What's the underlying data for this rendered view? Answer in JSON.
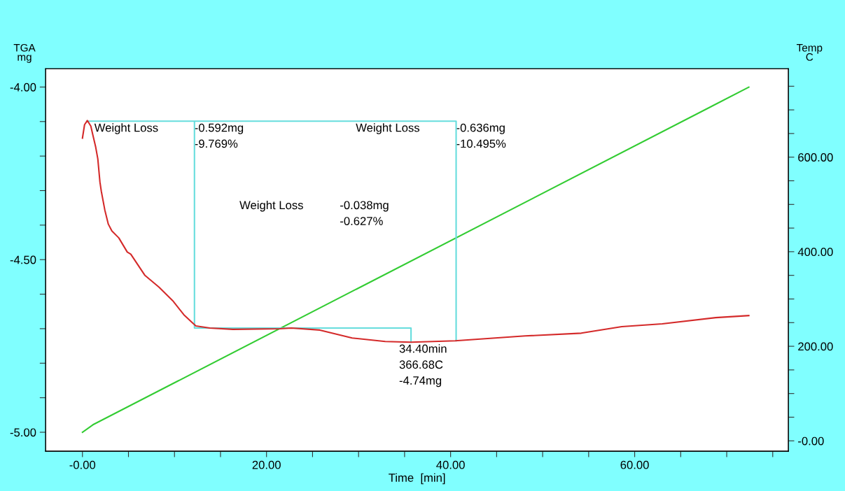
{
  "chart_data": {
    "type": "line",
    "xlabel": "Time  [min]",
    "ylabel": "TGA\nmg",
    "y2label": "Temp\nC",
    "xlim": [
      -4,
      76.7
    ],
    "ylim": [
      -5.055,
      -3.947
    ],
    "y2lim": [
      -22,
      787
    ],
    "xticks": [
      {
        "value": 0,
        "label": "-0.00"
      },
      {
        "value": 5,
        "label": null
      },
      {
        "value": 10,
        "label": null
      },
      {
        "value": 15,
        "label": null
      },
      {
        "value": 20,
        "label": "20.00"
      },
      {
        "value": 25,
        "label": null
      },
      {
        "value": 30,
        "label": null
      },
      {
        "value": 35,
        "label": null
      },
      {
        "value": 40,
        "label": "40.00"
      },
      {
        "value": 45,
        "label": null
      },
      {
        "value": 50,
        "label": null
      },
      {
        "value": 55,
        "label": null
      },
      {
        "value": 60,
        "label": "60.00"
      },
      {
        "value": 65,
        "label": null
      },
      {
        "value": 70,
        "label": null
      },
      {
        "value": 75,
        "label": null
      }
    ],
    "yticks": [
      {
        "value": -4.0,
        "label": "-4.00"
      },
      {
        "value": -4.1,
        "label": null
      },
      {
        "value": -4.2,
        "label": null
      },
      {
        "value": -4.3,
        "label": null
      },
      {
        "value": -4.4,
        "label": null
      },
      {
        "value": -4.5,
        "label": "-4.50"
      },
      {
        "value": -4.6,
        "label": null
      },
      {
        "value": -4.7,
        "label": null
      },
      {
        "value": -4.8,
        "label": null
      },
      {
        "value": -4.9,
        "label": null
      },
      {
        "value": -5.0,
        "label": "-5.00"
      }
    ],
    "y2ticks": [
      {
        "value": 0,
        "label": "-0.00"
      },
      {
        "value": 50,
        "label": null
      },
      {
        "value": 100,
        "label": null
      },
      {
        "value": 150,
        "label": null
      },
      {
        "value": 200,
        "label": "200.00"
      },
      {
        "value": 250,
        "label": null
      },
      {
        "value": 300,
        "label": null
      },
      {
        "value": 350,
        "label": null
      },
      {
        "value": 400,
        "label": "400.00"
      },
      {
        "value": 450,
        "label": null
      },
      {
        "value": 500,
        "label": null
      },
      {
        "value": 550,
        "label": null
      },
      {
        "value": 600,
        "label": "600.00"
      },
      {
        "value": 650,
        "label": null
      },
      {
        "value": 700,
        "label": null
      },
      {
        "value": 750,
        "label": null
      }
    ],
    "grid": false,
    "legend": false,
    "marker": "none",
    "line_style": "solid",
    "series": [
      {
        "color": "#d42a2a",
        "axis": "y",
        "x": [
          0,
          0.23,
          0.53,
          0.91,
          1.14,
          1.44,
          1.67,
          1.9,
          2.05,
          2.43,
          2.81,
          3.2,
          3.95,
          4.87,
          5.25,
          6.77,
          8.29,
          9.81,
          11.03,
          12.32,
          13.84,
          16.35,
          21.44,
          22.7,
          25.8,
          29.3,
          32.9,
          35.7,
          40.5,
          48.1,
          54.2,
          58.6,
          63,
          68.8,
          72.4
        ],
        "values": [
          -4.148,
          -4.109,
          -4.097,
          -4.113,
          -4.14,
          -4.174,
          -4.208,
          -4.275,
          -4.302,
          -4.356,
          -4.397,
          -4.417,
          -4.437,
          -4.478,
          -4.484,
          -4.545,
          -4.579,
          -4.619,
          -4.66,
          -4.692,
          -4.698,
          -4.702,
          -4.7,
          -4.698,
          -4.704,
          -4.727,
          -4.737,
          -4.739,
          -4.735,
          -4.721,
          -4.713,
          -4.694,
          -4.686,
          -4.668,
          -4.662
        ]
      },
      {
        "color": "#33cc33",
        "axis": "y2",
        "x": [
          0,
          1.14,
          72.4
        ],
        "values": [
          18,
          34,
          748
        ]
      },
      {
        "color": "#66dddd",
        "axis": "y",
        "x": [
          0.5,
          40.6,
          40.6,
          null,
          12.17,
          12.17,
          35.7,
          35.7
        ],
        "values": [
          -4.099,
          -4.099,
          -4.735,
          null,
          -4.099,
          -4.698,
          -4.698,
          -4.739
        ]
      }
    ],
    "annotations": [
      {
        "text": "Weight Loss",
        "x": 1.29,
        "y": -4.105
      },
      {
        "text": "-0.592mg\n-9.769%",
        "x": 12.17,
        "y": -4.105
      },
      {
        "text": "Weight Loss",
        "x": 29.7,
        "y": -4.105
      },
      {
        "text": "-0.636mg\n-10.495%",
        "x": 40.6,
        "y": -4.105
      },
      "Weight Loss",
      "-0.038mg\n-0.627%",
      {
        "text": "34.40min\n366.68C\n-4.74mg",
        "x": 34.4,
        "y": -4.745
      }
    ]
  }
}
